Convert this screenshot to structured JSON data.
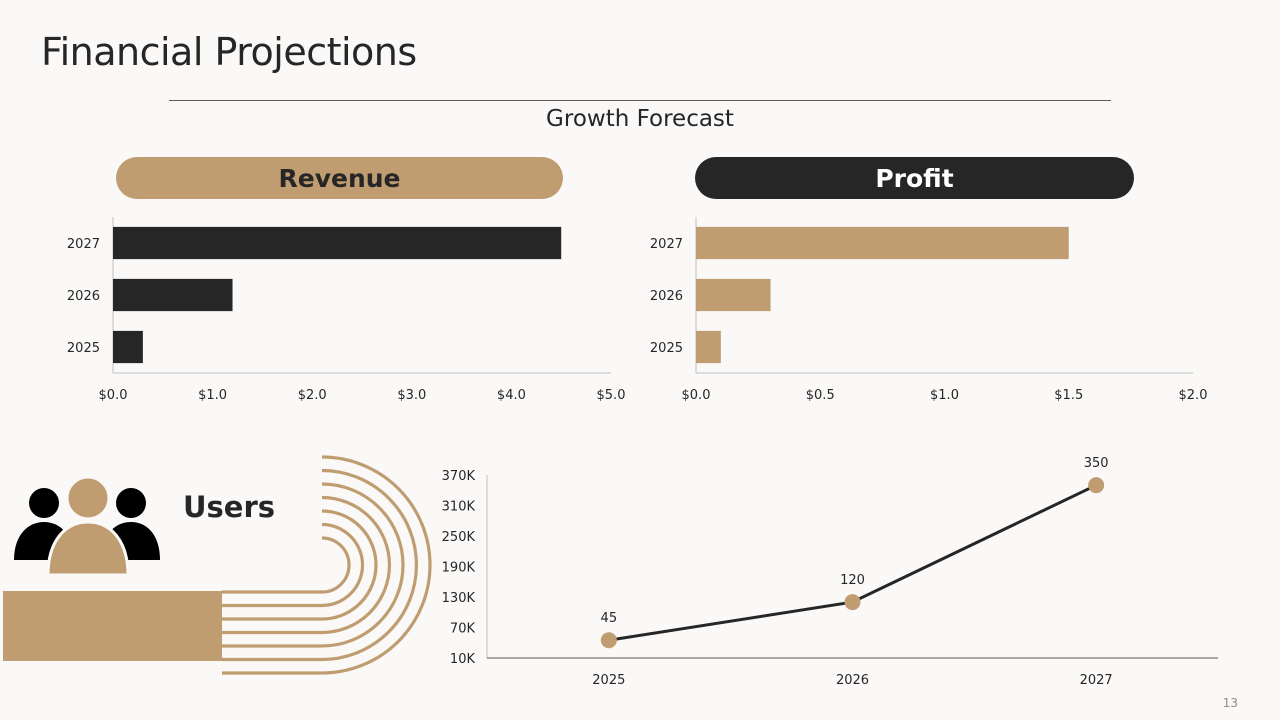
{
  "slide": {
    "title": "Financial Projections",
    "subtitle": "Growth Forecast",
    "page_number": "13"
  },
  "panels": {
    "revenue_label": "Revenue",
    "profit_label": "Profit",
    "users_label": "Users"
  },
  "icons": {
    "users_group": "users-group-icon",
    "decorative_arcs": "concentric-arc-decoration"
  },
  "colors": {
    "accent": "#bf9d70",
    "dark": "#262626",
    "background": "#fbf9f8"
  },
  "chart_data": [
    {
      "id": "revenue",
      "type": "bar",
      "orientation": "horizontal",
      "categories": [
        "2025",
        "2026",
        "2027"
      ],
      "values": [
        0.3,
        1.2,
        4.5
      ],
      "xlim": [
        0,
        5
      ],
      "x_ticks": [
        "$0.0",
        "$1.0",
        "$2.0",
        "$3.0",
        "$4.0",
        "$5.0"
      ],
      "bar_color": "#262626",
      "title": "Revenue"
    },
    {
      "id": "profit",
      "type": "bar",
      "orientation": "horizontal",
      "categories": [
        "2025",
        "2026",
        "2027"
      ],
      "values": [
        0.1,
        0.3,
        1.5
      ],
      "xlim": [
        0,
        2
      ],
      "x_ticks": [
        "$0.0",
        "$0.5",
        "$1.0",
        "$1.5",
        "$2.0"
      ],
      "bar_color": "#bf9d70",
      "title": "Profit"
    },
    {
      "id": "users",
      "type": "line",
      "categories": [
        "2025",
        "2026",
        "2027"
      ],
      "values": [
        45,
        120,
        350
      ],
      "data_labels": [
        "45",
        "120",
        "350"
      ],
      "ylim": [
        10,
        370
      ],
      "y_ticks": [
        "10K",
        "70K",
        "130K",
        "190K",
        "250K",
        "310K",
        "370K"
      ],
      "line_color": "#262626",
      "marker_color": "#bf9d70",
      "title": "Users"
    }
  ]
}
